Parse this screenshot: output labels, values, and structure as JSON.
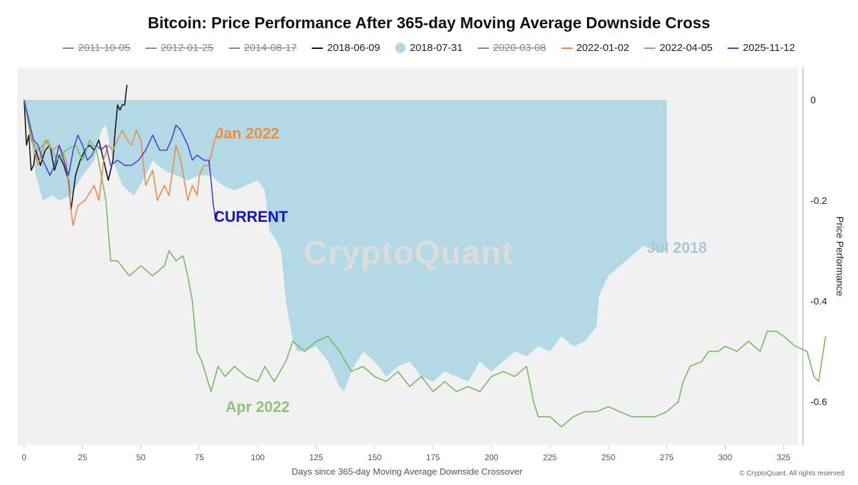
{
  "chart_data": {
    "type": "line",
    "title": "Bitcoin: Price Performance After 365-day Moving Average Downside Cross",
    "xlabel": "Days since 365-day Moving Average Downside Crossover",
    "ylabel": "Price Performance",
    "xlim": [
      0,
      345
    ],
    "ylim": [
      -0.68,
      0.07
    ],
    "x_ticks": [
      0,
      25,
      50,
      75,
      100,
      125,
      150,
      175,
      200,
      225,
      250,
      275,
      300,
      325
    ],
    "y_ticks": [
      0,
      -0.2,
      -0.4,
      -0.6
    ],
    "y_axis_side": "right",
    "legend_position": "top",
    "watermark": "CryptoQuant",
    "copyright": "© CryptoQuant. All rights reserved",
    "annotations": [
      {
        "text": "Jan 2022",
        "color": "#ef8f3a"
      },
      {
        "text": "CURRENT",
        "color": "#1010d8"
      },
      {
        "text": "Jul 2018",
        "color": "#a8c9d3"
      },
      {
        "text": "Apr 2022",
        "color": "#8fc27a"
      }
    ],
    "series": [
      {
        "name": "2011-10-05",
        "hidden": true,
        "color": "#666666",
        "type": "line",
        "points": []
      },
      {
        "name": "2012-01-25",
        "hidden": true,
        "color": "#666666",
        "type": "line",
        "points": []
      },
      {
        "name": "2014-08-17",
        "hidden": true,
        "color": "#666666",
        "type": "line",
        "points": []
      },
      {
        "name": "2018-06-09",
        "hidden": false,
        "color": "#111111",
        "type": "line",
        "points": [
          [
            0,
            0
          ],
          [
            1,
            -0.09
          ],
          [
            2,
            -0.07
          ],
          [
            3,
            -0.14
          ],
          [
            4,
            -0.13
          ],
          [
            5,
            -0.1
          ],
          [
            7,
            -0.13
          ],
          [
            9,
            -0.1
          ],
          [
            11,
            -0.09
          ],
          [
            13,
            -0.14
          ],
          [
            15,
            -0.11
          ],
          [
            17,
            -0.13
          ],
          [
            19,
            -0.16
          ],
          [
            20,
            -0.22
          ],
          [
            22,
            -0.15
          ],
          [
            24,
            -0.12
          ],
          [
            26,
            -0.1
          ],
          [
            28,
            -0.09
          ],
          [
            30,
            -0.1
          ],
          [
            32,
            -0.08
          ],
          [
            34,
            -0.12
          ],
          [
            36,
            -0.16
          ],
          [
            37,
            -0.14
          ],
          [
            38,
            -0.12
          ],
          [
            39,
            -0.06
          ],
          [
            40,
            -0.01
          ],
          [
            41,
            -0.02
          ],
          [
            42,
            -0.01
          ],
          [
            43,
            -0.01
          ],
          [
            44,
            0.03
          ]
        ]
      },
      {
        "name": "2018-07-31",
        "hidden": false,
        "color": "#b3d9e6",
        "type": "area",
        "points": [
          [
            0,
            0
          ],
          [
            2,
            -0.05
          ],
          [
            5,
            -0.15
          ],
          [
            8,
            -0.2
          ],
          [
            12,
            -0.19
          ],
          [
            15,
            -0.2
          ],
          [
            20,
            -0.19
          ],
          [
            25,
            -0.15
          ],
          [
            30,
            -0.12
          ],
          [
            33,
            -0.06
          ],
          [
            35,
            -0.05
          ],
          [
            38,
            -0.12
          ],
          [
            42,
            -0.17
          ],
          [
            47,
            -0.19
          ],
          [
            52,
            -0.15
          ],
          [
            55,
            -0.12
          ],
          [
            60,
            -0.14
          ],
          [
            65,
            -0.15
          ],
          [
            70,
            -0.16
          ],
          [
            75,
            -0.15
          ],
          [
            80,
            -0.15
          ],
          [
            85,
            -0.17
          ],
          [
            90,
            -0.18
          ],
          [
            95,
            -0.17
          ],
          [
            100,
            -0.16
          ],
          [
            103,
            -0.18
          ],
          [
            105,
            -0.26
          ],
          [
            108,
            -0.28
          ],
          [
            110,
            -0.3
          ],
          [
            112,
            -0.4
          ],
          [
            115,
            -0.48
          ],
          [
            117,
            -0.5
          ],
          [
            120,
            -0.5
          ],
          [
            125,
            -0.49
          ],
          [
            130,
            -0.52
          ],
          [
            135,
            -0.57
          ],
          [
            137,
            -0.58
          ],
          [
            140,
            -0.54
          ],
          [
            145,
            -0.5
          ],
          [
            150,
            -0.52
          ],
          [
            155,
            -0.55
          ],
          [
            160,
            -0.53
          ],
          [
            165,
            -0.52
          ],
          [
            170,
            -0.55
          ],
          [
            175,
            -0.56
          ],
          [
            180,
            -0.54
          ],
          [
            185,
            -0.55
          ],
          [
            190,
            -0.56
          ],
          [
            195,
            -0.52
          ],
          [
            200,
            -0.54
          ],
          [
            205,
            -0.52
          ],
          [
            210,
            -0.5
          ],
          [
            215,
            -0.51
          ],
          [
            220,
            -0.49
          ],
          [
            225,
            -0.5
          ],
          [
            230,
            -0.47
          ],
          [
            235,
            -0.49
          ],
          [
            240,
            -0.48
          ],
          [
            245,
            -0.45
          ],
          [
            246,
            -0.39
          ],
          [
            250,
            -0.35
          ],
          [
            255,
            -0.33
          ],
          [
            260,
            -0.31
          ],
          [
            265,
            -0.29
          ],
          [
            270,
            -0.3
          ],
          [
            275,
            -0.3
          ]
        ]
      },
      {
        "name": "2020-03-08",
        "hidden": true,
        "color": "#666666",
        "type": "line",
        "points": []
      },
      {
        "name": "2022-01-02",
        "hidden": false,
        "color": "#ea8a45",
        "type": "line",
        "points": [
          [
            0,
            0
          ],
          [
            3,
            -0.07
          ],
          [
            6,
            -0.13
          ],
          [
            9,
            -0.08
          ],
          [
            12,
            -0.1
          ],
          [
            15,
            -0.09
          ],
          [
            18,
            -0.12
          ],
          [
            20,
            -0.22
          ],
          [
            21,
            -0.25
          ],
          [
            23,
            -0.21
          ],
          [
            26,
            -0.2
          ],
          [
            30,
            -0.17
          ],
          [
            32,
            -0.2
          ],
          [
            34,
            -0.12
          ],
          [
            36,
            -0.09
          ],
          [
            38,
            -0.1
          ],
          [
            42,
            -0.06
          ],
          [
            44,
            -0.08
          ],
          [
            46,
            -0.09
          ],
          [
            48,
            -0.06
          ],
          [
            50,
            -0.08
          ],
          [
            52,
            -0.17
          ],
          [
            55,
            -0.14
          ],
          [
            57,
            -0.2
          ],
          [
            60,
            -0.17
          ],
          [
            62,
            -0.19
          ],
          [
            65,
            -0.09
          ],
          [
            67,
            -0.12
          ],
          [
            70,
            -0.2
          ],
          [
            72,
            -0.17
          ],
          [
            74,
            -0.19
          ],
          [
            75,
            -0.15
          ],
          [
            77,
            -0.13
          ],
          [
            79,
            -0.13
          ],
          [
            81,
            -0.09
          ],
          [
            83,
            -0.06
          ]
        ]
      },
      {
        "name": "2022-04-05",
        "hidden": false,
        "color": "#74b85e",
        "type": "line",
        "points": [
          [
            0,
            0
          ],
          [
            3,
            -0.08
          ],
          [
            6,
            -0.1
          ],
          [
            10,
            -0.08
          ],
          [
            14,
            -0.12
          ],
          [
            18,
            -0.1
          ],
          [
            22,
            -0.09
          ],
          [
            25,
            -0.12
          ],
          [
            28,
            -0.08
          ],
          [
            31,
            -0.1
          ],
          [
            33,
            -0.15
          ],
          [
            35,
            -0.2
          ],
          [
            37,
            -0.32
          ],
          [
            40,
            -0.32
          ],
          [
            45,
            -0.35
          ],
          [
            50,
            -0.33
          ],
          [
            55,
            -0.35
          ],
          [
            60,
            -0.33
          ],
          [
            62,
            -0.3
          ],
          [
            65,
            -0.32
          ],
          [
            68,
            -0.31
          ],
          [
            70,
            -0.35
          ],
          [
            72,
            -0.4
          ],
          [
            74,
            -0.5
          ],
          [
            76,
            -0.52
          ],
          [
            78,
            -0.55
          ],
          [
            80,
            -0.58
          ],
          [
            83,
            -0.53
          ],
          [
            86,
            -0.55
          ],
          [
            90,
            -0.53
          ],
          [
            95,
            -0.55
          ],
          [
            100,
            -0.56
          ],
          [
            103,
            -0.53
          ],
          [
            107,
            -0.56
          ],
          [
            112,
            -0.52
          ],
          [
            115,
            -0.48
          ],
          [
            120,
            -0.5
          ],
          [
            125,
            -0.48
          ],
          [
            130,
            -0.47
          ],
          [
            135,
            -0.5
          ],
          [
            140,
            -0.54
          ],
          [
            145,
            -0.53
          ],
          [
            150,
            -0.55
          ],
          [
            155,
            -0.56
          ],
          [
            160,
            -0.54
          ],
          [
            165,
            -0.57
          ],
          [
            170,
            -0.55
          ],
          [
            175,
            -0.58
          ],
          [
            180,
            -0.56
          ],
          [
            185,
            -0.58
          ],
          [
            190,
            -0.57
          ],
          [
            195,
            -0.58
          ],
          [
            200,
            -0.55
          ],
          [
            205,
            -0.54
          ],
          [
            210,
            -0.55
          ],
          [
            215,
            -0.53
          ],
          [
            218,
            -0.6
          ],
          [
            220,
            -0.63
          ],
          [
            225,
            -0.63
          ],
          [
            230,
            -0.65
          ],
          [
            235,
            -0.63
          ],
          [
            240,
            -0.62
          ],
          [
            245,
            -0.62
          ],
          [
            250,
            -0.61
          ],
          [
            255,
            -0.62
          ],
          [
            260,
            -0.63
          ],
          [
            265,
            -0.63
          ],
          [
            270,
            -0.63
          ],
          [
            275,
            -0.62
          ],
          [
            280,
            -0.6
          ],
          [
            282,
            -0.56
          ],
          [
            285,
            -0.53
          ],
          [
            290,
            -0.52
          ],
          [
            293,
            -0.5
          ],
          [
            297,
            -0.5
          ],
          [
            300,
            -0.49
          ],
          [
            305,
            -0.5
          ],
          [
            310,
            -0.48
          ],
          [
            315,
            -0.5
          ],
          [
            318,
            -0.46
          ],
          [
            322,
            -0.46
          ],
          [
            325,
            -0.47
          ],
          [
            330,
            -0.49
          ],
          [
            335,
            -0.5
          ],
          [
            338,
            -0.55
          ],
          [
            340,
            -0.56
          ],
          [
            343,
            -0.47
          ]
        ]
      },
      {
        "name": "2025-11-12",
        "hidden": false,
        "color": "#4b3fd1",
        "type": "line",
        "points": [
          [
            0,
            0
          ],
          [
            2,
            -0.04
          ],
          [
            4,
            -0.08
          ],
          [
            6,
            -0.09
          ],
          [
            8,
            -0.12
          ],
          [
            11,
            -0.15
          ],
          [
            13,
            -0.13
          ],
          [
            15,
            -0.09
          ],
          [
            17,
            -0.12
          ],
          [
            19,
            -0.15
          ],
          [
            21,
            -0.1
          ],
          [
            23,
            -0.07
          ],
          [
            25,
            -0.09
          ],
          [
            27,
            -0.12
          ],
          [
            29,
            -0.11
          ],
          [
            31,
            -0.09
          ],
          [
            33,
            -0.1
          ],
          [
            35,
            -0.09
          ],
          [
            37,
            -0.13
          ],
          [
            40,
            -0.12
          ],
          [
            43,
            -0.13
          ],
          [
            46,
            -0.13
          ],
          [
            49,
            -0.12
          ],
          [
            52,
            -0.1
          ],
          [
            55,
            -0.07
          ],
          [
            58,
            -0.1
          ],
          [
            61,
            -0.1
          ],
          [
            63,
            -0.08
          ],
          [
            65,
            -0.05
          ],
          [
            67,
            -0.06
          ],
          [
            70,
            -0.09
          ],
          [
            72,
            -0.12
          ],
          [
            74,
            -0.11
          ],
          [
            77,
            -0.12
          ],
          [
            79,
            -0.12
          ],
          [
            80,
            -0.16
          ],
          [
            81,
            -0.21
          ],
          [
            82,
            -0.24
          ],
          [
            83,
            -0.22
          ]
        ]
      }
    ]
  }
}
